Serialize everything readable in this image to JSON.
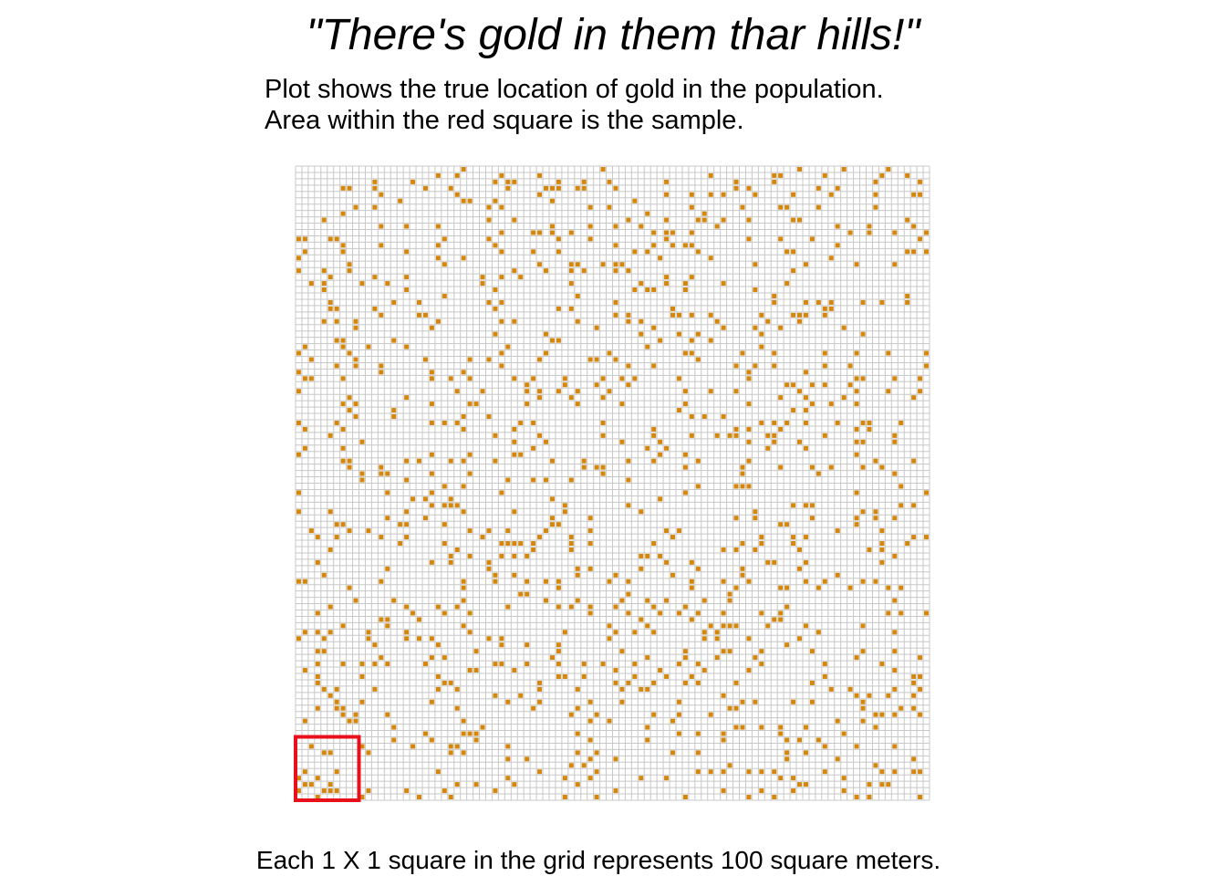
{
  "title": "\"There's gold in them thar hills!\"",
  "subtitle_lines": [
    "Plot shows the true location of gold in the population.",
    "Area within the red square is the sample."
  ],
  "caption": "Each 1 X 1 square in the grid represents 100 square meters.",
  "colors": {
    "gold": "#D4870A",
    "grid": "#C8C8C8",
    "sample_outline": "#E8101A",
    "background": "#FFFFFF"
  },
  "chart_data": {
    "type": "heatmap",
    "title": "\"There's gold in them thar hills!\"",
    "grid": {
      "columns": 100,
      "rows": 100
    },
    "cell_area": "100 square meters",
    "cell_values": {
      "gold": 1,
      "no_gold": 0
    },
    "gold_fraction": 0.1,
    "sample_region": {
      "x_range": [
        0,
        10
      ],
      "y_range": [
        0,
        10
      ]
    },
    "sample_gold_cells": [
      [
        3,
        0
      ],
      [
        0,
        1
      ],
      [
        4,
        1
      ],
      [
        5,
        1
      ],
      [
        6,
        1
      ],
      [
        1,
        2
      ],
      [
        2,
        2
      ],
      [
        5,
        2
      ],
      [
        0,
        3
      ],
      [
        3,
        3
      ],
      [
        1,
        4
      ],
      [
        6,
        4
      ],
      [
        4,
        7
      ],
      [
        5,
        7
      ],
      [
        2,
        8
      ]
    ],
    "note": "Remaining gold cells are scattered across the 100 x 100 population grid at about 10% density."
  }
}
